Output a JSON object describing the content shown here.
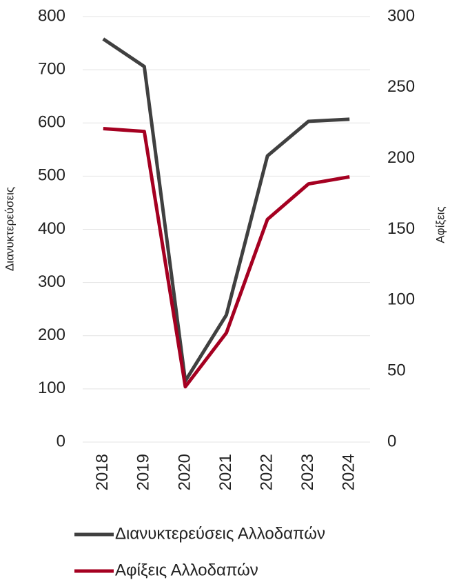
{
  "chart_data": {
    "type": "line",
    "categories": [
      "2018",
      "2019",
      "2020",
      "2021",
      "2022",
      "2023",
      "2024"
    ],
    "y_label": "Διανυκτερεύσεις",
    "y2_label": "Αφίξεις",
    "series": [
      {
        "name": "Διανυκτερεύσεις Αλλοδαπών",
        "color": "#404040",
        "values": [
          758,
          706,
          115,
          239,
          538,
          603,
          607
        ]
      },
      {
        "name": "Αφίξεις Αλλοδαπών",
        "color": "#a50021",
        "axis": "y2",
        "values": [
          221,
          219,
          39,
          77,
          157,
          182,
          187
        ]
      }
    ],
    "ylim": [
      0,
      800
    ],
    "yticks": [
      0,
      100,
      200,
      300,
      400,
      500,
      600,
      700,
      800
    ],
    "y2lim": [
      0,
      300
    ],
    "y2ticks": [
      0,
      50,
      100,
      150,
      200,
      250,
      300
    ],
    "grid": true,
    "legend": "bottom"
  }
}
